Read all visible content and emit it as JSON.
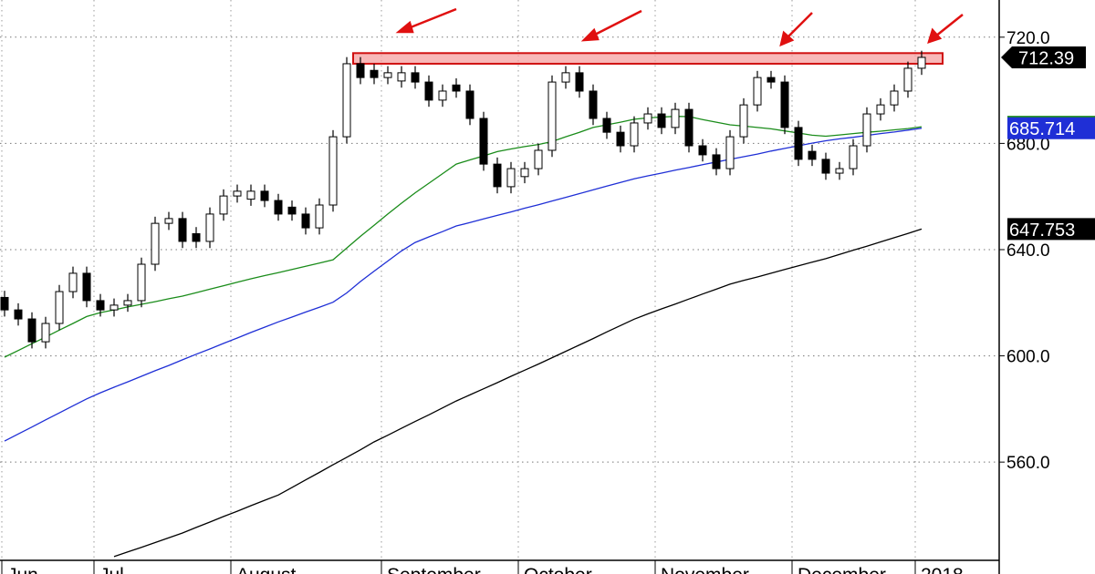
{
  "chart_data": {
    "type": "candlestick",
    "categories": [
      "Jun",
      null,
      null,
      null,
      null,
      null,
      null,
      "Jul",
      null,
      null,
      null,
      null,
      null,
      null,
      null,
      null,
      null,
      "August",
      null,
      null,
      null,
      null,
      null,
      null,
      null,
      null,
      null,
      null,
      "September",
      null,
      null,
      null,
      null,
      null,
      null,
      null,
      null,
      null,
      "October",
      null,
      null,
      null,
      null,
      null,
      null,
      null,
      null,
      null,
      "November",
      null,
      null,
      null,
      null,
      null,
      null,
      null,
      null,
      null,
      "December",
      null,
      null,
      null,
      null,
      null,
      null,
      null,
      null,
      "2018"
    ],
    "open": [
      622.0,
      617.3,
      613.9,
      605.3,
      612.2,
      624.2,
      631.1,
      620.8,
      617.3,
      619.1,
      620.8,
      634.5,
      649.9,
      651.7,
      646.0,
      643.1,
      653.4,
      660.2,
      659.0,
      662.0,
      658.5,
      656.0,
      653.4,
      648.2,
      656.8,
      682.5,
      710.0,
      707.5,
      704.8,
      703.5,
      706.6,
      703.1,
      696.3,
      702.0,
      699.7,
      689.4,
      672.2,
      663.7,
      667.5,
      670.5,
      677.4,
      703.1,
      706.6,
      699.7,
      689.4,
      684.2,
      679.1,
      687.7,
      691.1,
      686.0,
      692.8,
      679.1,
      675.7,
      670.5,
      682.5,
      694.5,
      704.8,
      703.1,
      686.0,
      677.0,
      674.0,
      668.8,
      670.5,
      679.1,
      691.1,
      694.5,
      699.7,
      708.3
    ],
    "high": [
      624.5,
      619.8,
      616.4,
      614.7,
      626.7,
      633.6,
      633.6,
      623.3,
      621.6,
      623.3,
      637.0,
      652.4,
      654.2,
      654.2,
      648.5,
      655.9,
      662.7,
      664.5,
      664.5,
      664.5,
      661.0,
      658.5,
      655.9,
      659.3,
      685.0,
      712.5,
      712.5,
      710.0,
      709.1,
      709.1,
      709.1,
      705.6,
      702.2,
      704.5,
      702.2,
      691.9,
      674.7,
      673.0,
      673.0,
      679.9,
      705.6,
      709.1,
      709.1,
      702.2,
      691.9,
      686.7,
      690.2,
      693.6,
      693.6,
      695.3,
      695.3,
      681.6,
      678.2,
      685.0,
      697.0,
      707.3,
      707.3,
      705.6,
      688.5,
      679.5,
      676.5,
      673.0,
      681.6,
      693.6,
      697.0,
      702.2,
      710.8,
      714.9
    ],
    "low": [
      614.8,
      611.4,
      602.8,
      602.8,
      609.7,
      621.7,
      618.3,
      614.8,
      614.8,
      616.6,
      618.3,
      632.0,
      647.4,
      640.6,
      640.6,
      640.6,
      650.9,
      657.7,
      656.5,
      656.0,
      650.9,
      650.9,
      645.7,
      645.7,
      654.3,
      680.0,
      702.3,
      702.3,
      702.3,
      701.0,
      700.6,
      693.8,
      693.8,
      697.2,
      686.9,
      669.7,
      661.2,
      661.2,
      665.0,
      668.0,
      674.9,
      700.6,
      697.2,
      686.9,
      681.7,
      676.6,
      676.6,
      685.2,
      683.5,
      683.5,
      676.6,
      673.2,
      668.0,
      668.0,
      680.0,
      692.0,
      700.6,
      683.5,
      671.5,
      671.5,
      666.3,
      666.3,
      668.0,
      676.6,
      688.6,
      692.0,
      697.2,
      705.8
    ],
    "close": [
      617.3,
      613.9,
      605.3,
      612.2,
      624.2,
      631.1,
      620.8,
      617.3,
      619.1,
      620.8,
      634.5,
      649.9,
      651.7,
      643.1,
      643.1,
      653.4,
      660.2,
      662.0,
      662.0,
      658.5,
      653.4,
      653.4,
      648.2,
      656.8,
      682.5,
      710.0,
      704.8,
      704.8,
      706.6,
      706.6,
      703.1,
      696.3,
      699.7,
      699.7,
      689.4,
      672.2,
      663.7,
      670.5,
      670.5,
      677.4,
      703.1,
      706.6,
      699.7,
      689.4,
      684.2,
      679.1,
      687.7,
      691.1,
      686.0,
      692.8,
      679.1,
      675.7,
      670.5,
      682.5,
      694.5,
      704.8,
      703.1,
      686.0,
      674.0,
      674.0,
      668.8,
      670.5,
      679.1,
      691.1,
      694.5,
      699.7,
      708.3,
      712.39
    ],
    "series": [
      {
        "color": "#1a8c1a",
        "values": [
          599.5,
          602.0,
          604.6,
          607.1,
          609.7,
          612.2,
          614.8,
          616.3,
          617.3,
          618.4,
          619.4,
          620.4,
          621.5,
          622.5,
          623.8,
          625.1,
          626.4,
          627.7,
          629.0,
          630.2,
          631.3,
          632.5,
          633.7,
          634.9,
          636.2,
          640.6,
          645.0,
          649.2,
          653.4,
          657.5,
          661.4,
          665.0,
          668.6,
          672.2,
          673.8,
          675.3,
          676.9,
          677.9,
          678.8,
          679.6,
          680.7,
          682.5,
          684.2,
          686.0,
          687.0,
          688.0,
          689.1,
          689.6,
          689.9,
          690.2,
          690.1,
          689.0,
          688.0,
          687.0,
          686.5,
          686.0,
          685.5,
          684.7,
          683.9,
          683.1,
          682.7,
          683.2,
          683.7,
          684.2,
          684.6,
          685.1,
          685.6,
          686.26
        ]
      },
      {
        "color": "#1f2fd6",
        "values": [
          567.9,
          570.6,
          573.2,
          575.9,
          578.5,
          581.2,
          583.8,
          586.1,
          588.2,
          590.2,
          592.3,
          594.4,
          596.4,
          598.5,
          600.6,
          602.6,
          604.7,
          606.7,
          608.8,
          610.8,
          612.8,
          614.6,
          616.5,
          618.3,
          620.2,
          623.7,
          628.0,
          631.9,
          635.7,
          639.5,
          642.7,
          644.8,
          646.8,
          648.9,
          650.2,
          651.6,
          652.9,
          654.2,
          655.6,
          656.9,
          658.3,
          659.7,
          661.1,
          662.5,
          663.9,
          665.3,
          666.7,
          667.8,
          668.8,
          669.9,
          670.9,
          672.0,
          673.0,
          674.0,
          675.0,
          676.0,
          677.1,
          678.1,
          679.1,
          680.1,
          681.0,
          681.7,
          682.3,
          683.0,
          683.7,
          684.3,
          685.0,
          685.714
        ]
      },
      {
        "color": "#000000",
        "values": [
          null,
          null,
          null,
          null,
          null,
          null,
          null,
          null,
          524.4,
          526.2,
          527.9,
          529.7,
          531.5,
          533.3,
          535.4,
          537.4,
          539.5,
          541.5,
          543.6,
          545.6,
          547.6,
          550.4,
          553.3,
          556.1,
          559.0,
          561.8,
          564.6,
          567.6,
          570.1,
          572.7,
          575.3,
          577.8,
          580.4,
          583.0,
          585.3,
          587.6,
          589.9,
          592.3,
          594.6,
          596.9,
          599.3,
          601.7,
          604.1,
          606.5,
          609.0,
          611.4,
          613.8,
          615.8,
          617.7,
          619.5,
          621.4,
          623.3,
          625.1,
          627.0,
          628.4,
          629.7,
          631.1,
          632.5,
          633.9,
          635.3,
          636.6,
          638.2,
          639.8,
          641.3,
          642.9,
          644.5,
          646.1,
          647.753
        ]
      }
    ],
    "resistance": [
      710.0,
      714.0
    ],
    "ylim": [
      523,
      734
    ],
    "yticks": [
      {
        "value": 560,
        "label": "560.0"
      },
      {
        "value": 600,
        "label": "600.0"
      },
      {
        "value": 640,
        "label": "640.0"
      },
      {
        "value": 680,
        "label": "680.0"
      },
      {
        "value": 720,
        "label": "720.0"
      }
    ],
    "grid": true
  }
}
